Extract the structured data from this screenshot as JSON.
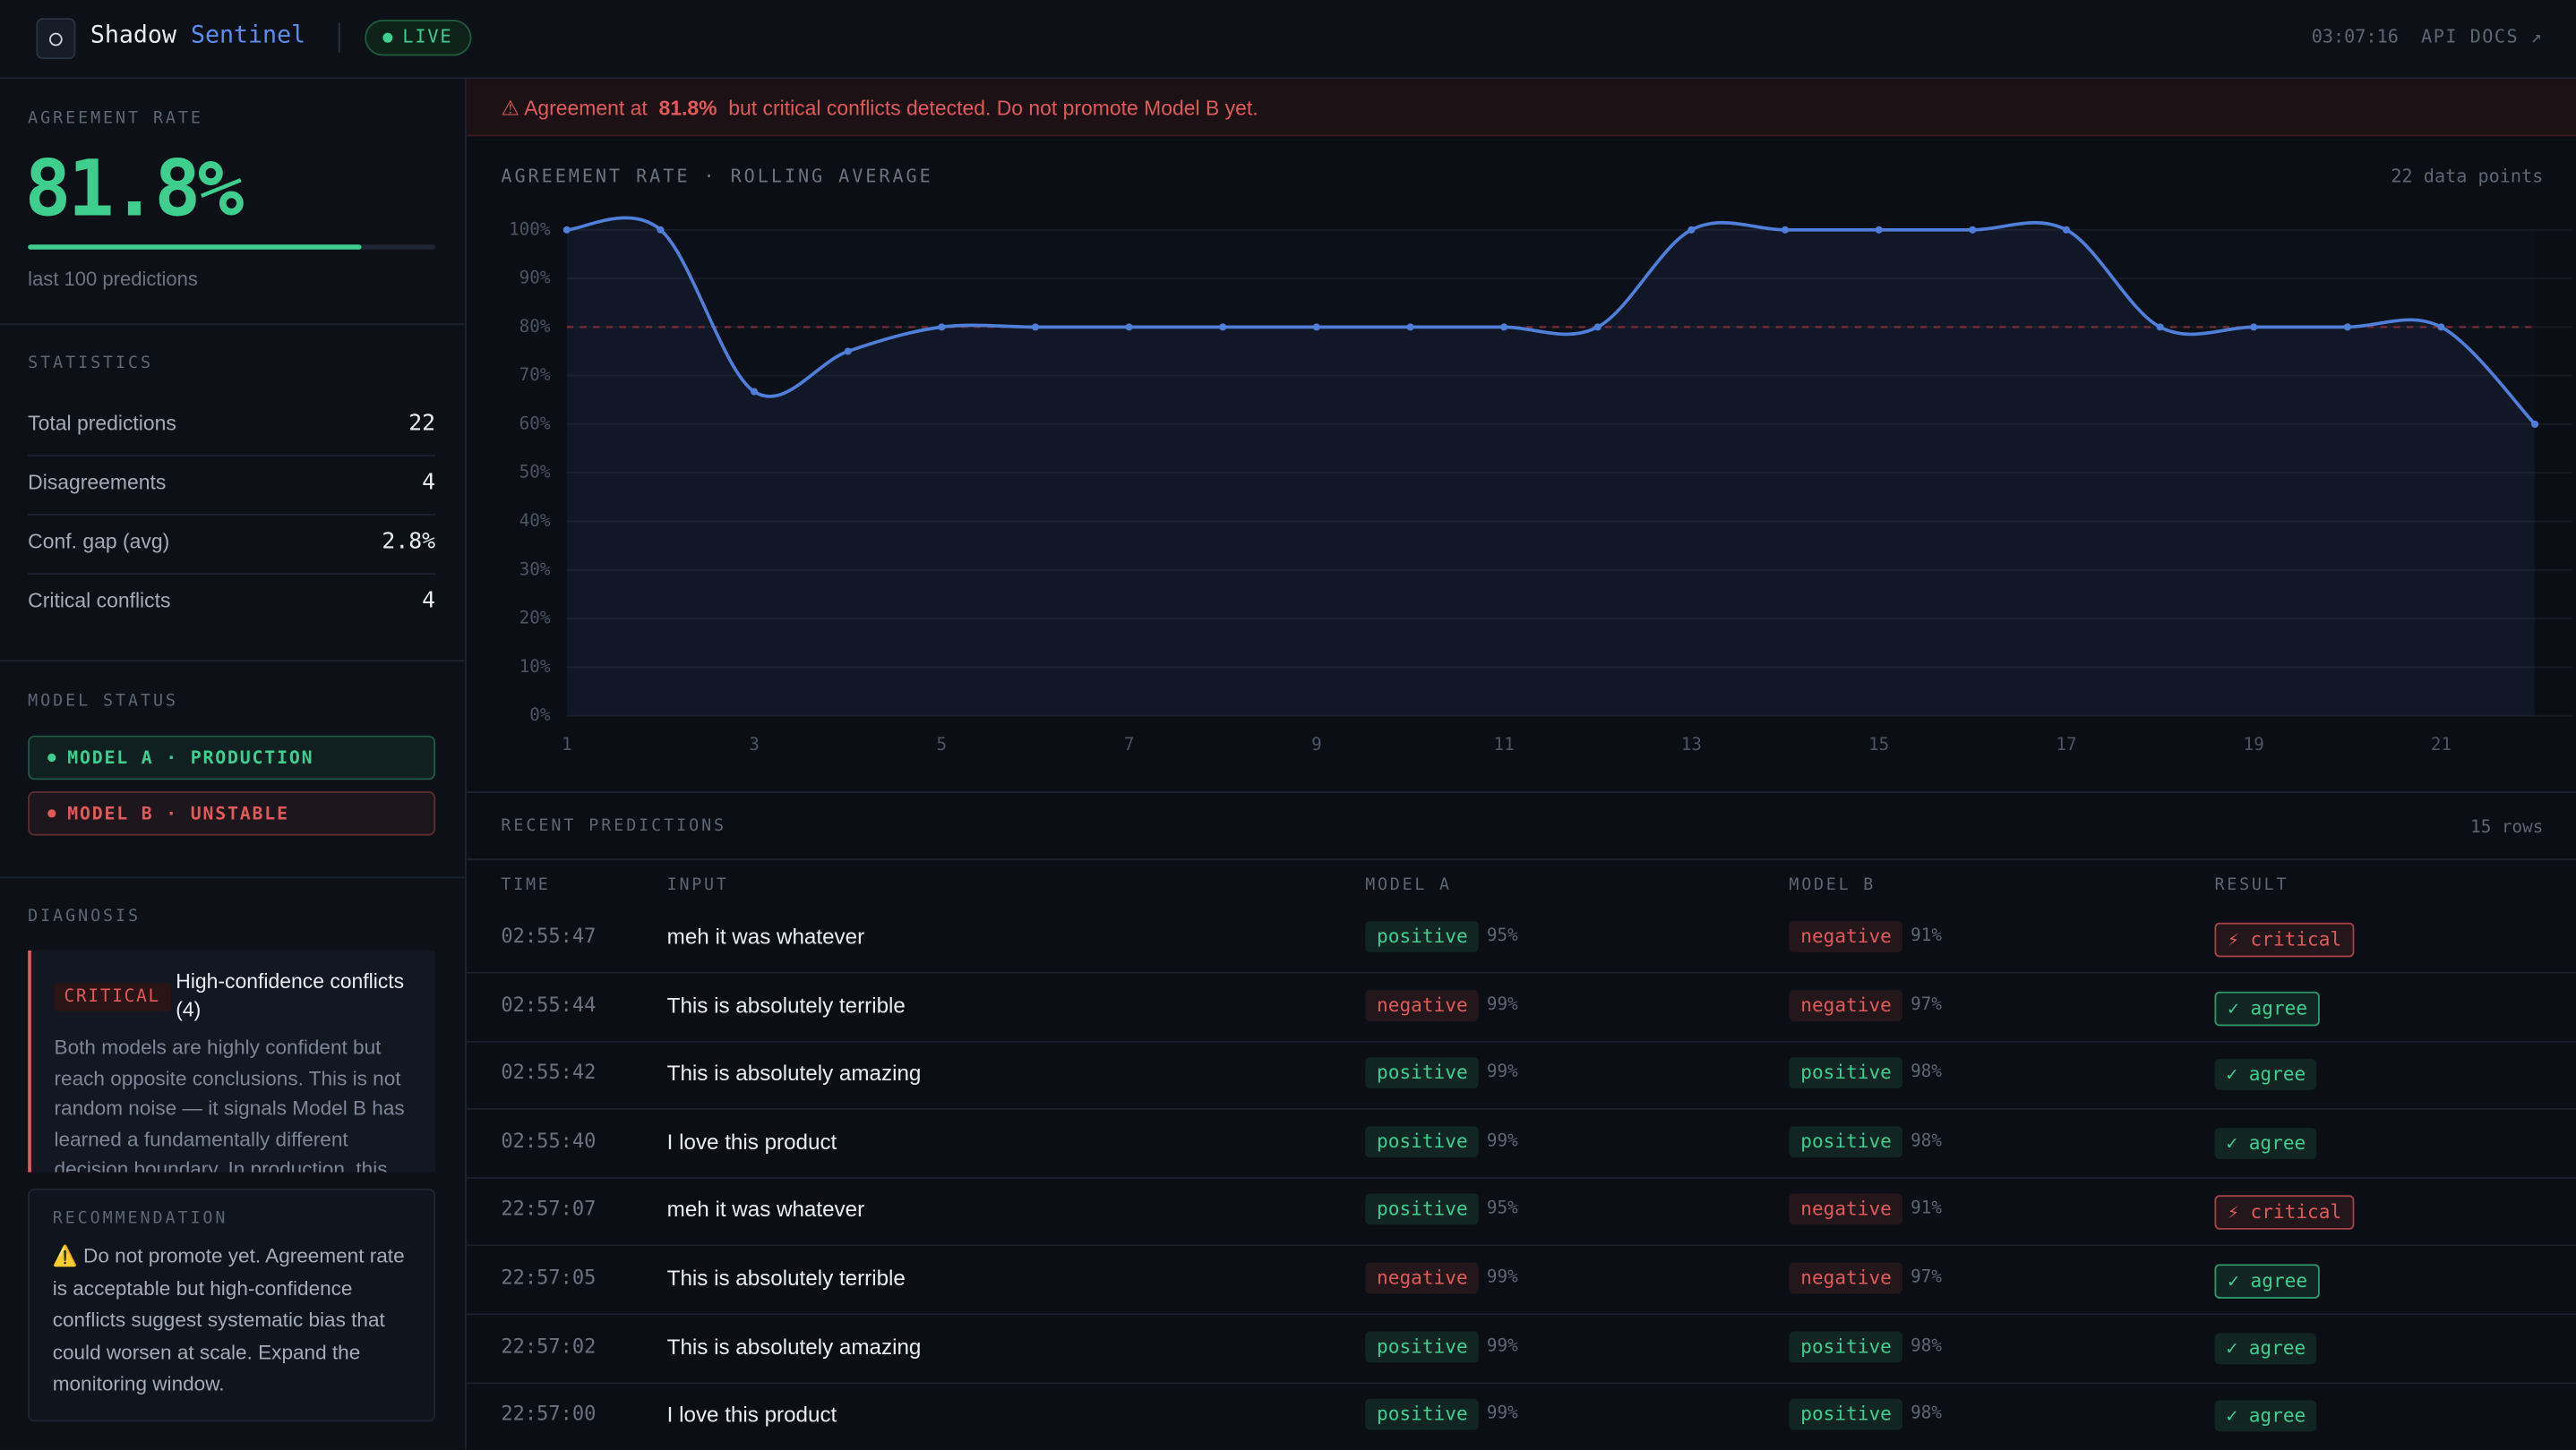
{
  "header": {
    "brand_1": "Shadow",
    "brand_2": "Sentinel",
    "status": "LIVE",
    "clock": "03:07:16",
    "link": "API DOCS ↗"
  },
  "sidebar": {
    "agreement": {
      "title": "AGREEMENT RATE",
      "rate": {
        "value": 81.8,
        "label": "81.8%"
      },
      "caption": "last 100 predictions"
    },
    "statistics": {
      "title": "STATISTICS",
      "rows": [
        {
          "label": "Total predictions",
          "value": "22"
        },
        {
          "label": "Disagreements",
          "value": "4"
        },
        {
          "label": "Conf. gap (avg)",
          "value": "2.8%"
        },
        {
          "label": "Critical conflicts",
          "value": "4"
        }
      ]
    },
    "model_status": {
      "title": "MODEL STATUS",
      "models": [
        {
          "label": "MODEL A · PRODUCTION",
          "color": "#3ecf8e"
        },
        {
          "label": "MODEL B · UNSTABLE",
          "color": "#e05a5a"
        }
      ]
    },
    "diagnosis": {
      "title": "DIAGNOSIS",
      "severity": "CRITICAL",
      "heading": "High-confidence conflicts (4)",
      "body": "Both models are highly confident but reach opposite conclusions. This is not random noise — it signals Model B has learned a fundamentally different decision boundary. In production, this"
    },
    "recommendation": {
      "title": "RECOMMENDATION",
      "icon": "⚠️",
      "body": "Do not promote yet. Agreement rate is acceptable but high-confidence conflicts suggest systematic bias that could worsen at scale. Expand the monitoring window."
    }
  },
  "alert": {
    "lead": "⚠ Agreement at",
    "rate": "81.8%",
    "message": "but critical conflicts detected. Do not promote Model B yet."
  },
  "chart_data": {
    "type": "line",
    "title": "AGREEMENT RATE · ROLLING AVERAGE",
    "subtitle": "22 data points",
    "x": [
      1,
      2,
      3,
      4,
      5,
      6,
      7,
      8,
      9,
      10,
      11,
      12,
      13,
      14,
      15,
      16,
      17,
      18,
      19,
      20,
      21,
      22
    ],
    "values": [
      100,
      100,
      66.7,
      75,
      80,
      80,
      80,
      80,
      80,
      80,
      80,
      80,
      100,
      100,
      100,
      100,
      100,
      80,
      80,
      80,
      80,
      60
    ],
    "color": "#4f7fd9",
    "threshold": 80,
    "threshold_color": "#7a2d35",
    "xlim": [
      1,
      22
    ],
    "xticks": [
      1,
      3,
      5,
      7,
      9,
      11,
      13,
      15,
      17,
      19,
      21
    ],
    "ylim": [
      0,
      100
    ],
    "yticks": [
      {
        "value": 0,
        "label": "0%"
      },
      {
        "value": 10,
        "label": "10%"
      },
      {
        "value": 20,
        "label": "20%"
      },
      {
        "value": 30,
        "label": "30%"
      },
      {
        "value": 40,
        "label": "40%"
      },
      {
        "value": 50,
        "label": "50%"
      },
      {
        "value": 60,
        "label": "60%"
      },
      {
        "value": 70,
        "label": "70%"
      },
      {
        "value": 80,
        "label": "80%"
      },
      {
        "value": 90,
        "label": "90%"
      },
      {
        "value": 100,
        "label": "100%"
      }
    ],
    "grid": true
  },
  "predictions": {
    "title": "RECENT PREDICTIONS",
    "count": "15 rows",
    "columns": [
      "TIME",
      "INPUT",
      "MODEL A",
      "MODEL B",
      "RESULT"
    ],
    "rows": [
      {
        "time": "02:55:47",
        "input": "meh it was whatever",
        "a": {
          "label": "positive",
          "color": "#3ecf8e"
        },
        "a_conf": "95%",
        "b": {
          "label": "negative",
          "color": "#e05a5a"
        },
        "b_conf": "91%",
        "result": {
          "label": "⚡ critical",
          "color": "#e05a5a"
        }
      },
      {
        "time": "02:55:44",
        "input": "This is absolutely terrible",
        "a": {
          "label": "negative",
          "color": "#e05a5a"
        },
        "a_conf": "99%",
        "b": {
          "label": "negative",
          "color": "#e05a5a"
        },
        "b_conf": "97%",
        "result": {
          "label": "✓ agree",
          "color": "#3ecf8e"
        }
      },
      {
        "time": "02:55:42",
        "input": "This is absolutely amazing",
        "a": {
          "label": "positive",
          "color": "#3ecf8e"
        },
        "a_conf": "99%",
        "b": {
          "label": "positive",
          "color": "#3ecf8e"
        },
        "b_conf": "98%",
        "result": {
          "label": "✓ agree",
          "color": "#3ecf8e"
        }
      },
      {
        "time": "02:55:40",
        "input": "I love this product",
        "a": {
          "label": "positive",
          "color": "#3ecf8e"
        },
        "a_conf": "99%",
        "b": {
          "label": "positive",
          "color": "#3ecf8e"
        },
        "b_conf": "98%",
        "result": {
          "label": "✓ agree",
          "color": "#3ecf8e"
        }
      },
      {
        "time": "22:57:07",
        "input": "meh it was whatever",
        "a": {
          "label": "positive",
          "color": "#3ecf8e"
        },
        "a_conf": "95%",
        "b": {
          "label": "negative",
          "color": "#e05a5a"
        },
        "b_conf": "91%",
        "result": {
          "label": "⚡ critical",
          "color": "#e05a5a"
        }
      },
      {
        "time": "22:57:05",
        "input": "This is absolutely terrible",
        "a": {
          "label": "negative",
          "color": "#e05a5a"
        },
        "a_conf": "99%",
        "b": {
          "label": "negative",
          "color": "#e05a5a"
        },
        "b_conf": "97%",
        "result": {
          "label": "✓ agree",
          "color": "#3ecf8e"
        }
      },
      {
        "time": "22:57:02",
        "input": "This is absolutely amazing",
        "a": {
          "label": "positive",
          "color": "#3ecf8e"
        },
        "a_conf": "99%",
        "b": {
          "label": "positive",
          "color": "#3ecf8e"
        },
        "b_conf": "98%",
        "result": {
          "label": "✓ agree",
          "color": "#3ecf8e"
        }
      },
      {
        "time": "22:57:00",
        "input": "I love this product",
        "a": {
          "label": "positive",
          "color": "#3ecf8e"
        },
        "a_conf": "99%",
        "b": {
          "label": "positive",
          "color": "#3ecf8e"
        },
        "b_conf": "98%",
        "result": {
          "label": "✓ agree",
          "color": "#3ecf8e"
        }
      }
    ]
  }
}
